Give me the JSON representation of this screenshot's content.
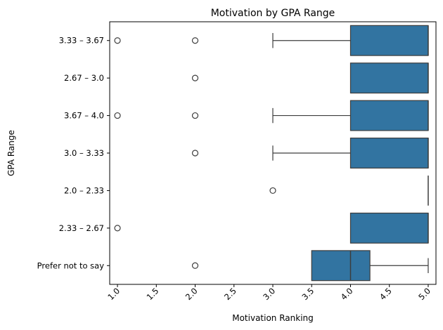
{
  "chart_data": {
    "type": "boxplot",
    "orientation": "horizontal",
    "title": "Motivation by GPA Range",
    "xlabel": "Motivation Ranking",
    "ylabel": "GPA Range",
    "xlim": [
      0.9,
      5.1
    ],
    "xticks": [
      "1.0",
      "1.5",
      "2.0",
      "2.5",
      "3.0",
      "3.5",
      "4.0",
      "4.5",
      "5.0"
    ],
    "xtick_rotation": 45,
    "grid": false,
    "box_color": "#3274a1",
    "edge_color": "#3d3d3d",
    "categories": [
      "3.33 – 3.67",
      "2.67 – 3.0",
      "3.67 – 4.0",
      "3.0 – 3.33",
      "2.0 – 2.33",
      "2.33 – 2.67",
      "Prefer not to say"
    ],
    "boxes": [
      {
        "q1": 4.0,
        "median": 5.0,
        "q3": 5.0,
        "whisker_low": 3.0,
        "whisker_high": 5.0,
        "outliers": [
          1.0,
          2.0
        ]
      },
      {
        "q1": 4.0,
        "median": 5.0,
        "q3": 5.0,
        "whisker_low": 4.0,
        "whisker_high": 5.0,
        "outliers": [
          2.0
        ]
      },
      {
        "q1": 4.0,
        "median": 5.0,
        "q3": 5.0,
        "whisker_low": 3.0,
        "whisker_high": 5.0,
        "outliers": [
          1.0,
          2.0
        ]
      },
      {
        "q1": 4.0,
        "median": 5.0,
        "q3": 5.0,
        "whisker_low": 3.0,
        "whisker_high": 5.0,
        "outliers": [
          2.0
        ]
      },
      {
        "q1": 5.0,
        "median": 5.0,
        "q3": 5.0,
        "whisker_low": 5.0,
        "whisker_high": 5.0,
        "outliers": [
          3.0
        ]
      },
      {
        "q1": 4.0,
        "median": 5.0,
        "q3": 5.0,
        "whisker_low": 4.0,
        "whisker_high": 5.0,
        "outliers": [
          1.0
        ]
      },
      {
        "q1": 3.5,
        "median": 4.0,
        "q3": 4.25,
        "whisker_low": 3.5,
        "whisker_high": 5.0,
        "outliers": [
          2.0
        ]
      }
    ]
  }
}
